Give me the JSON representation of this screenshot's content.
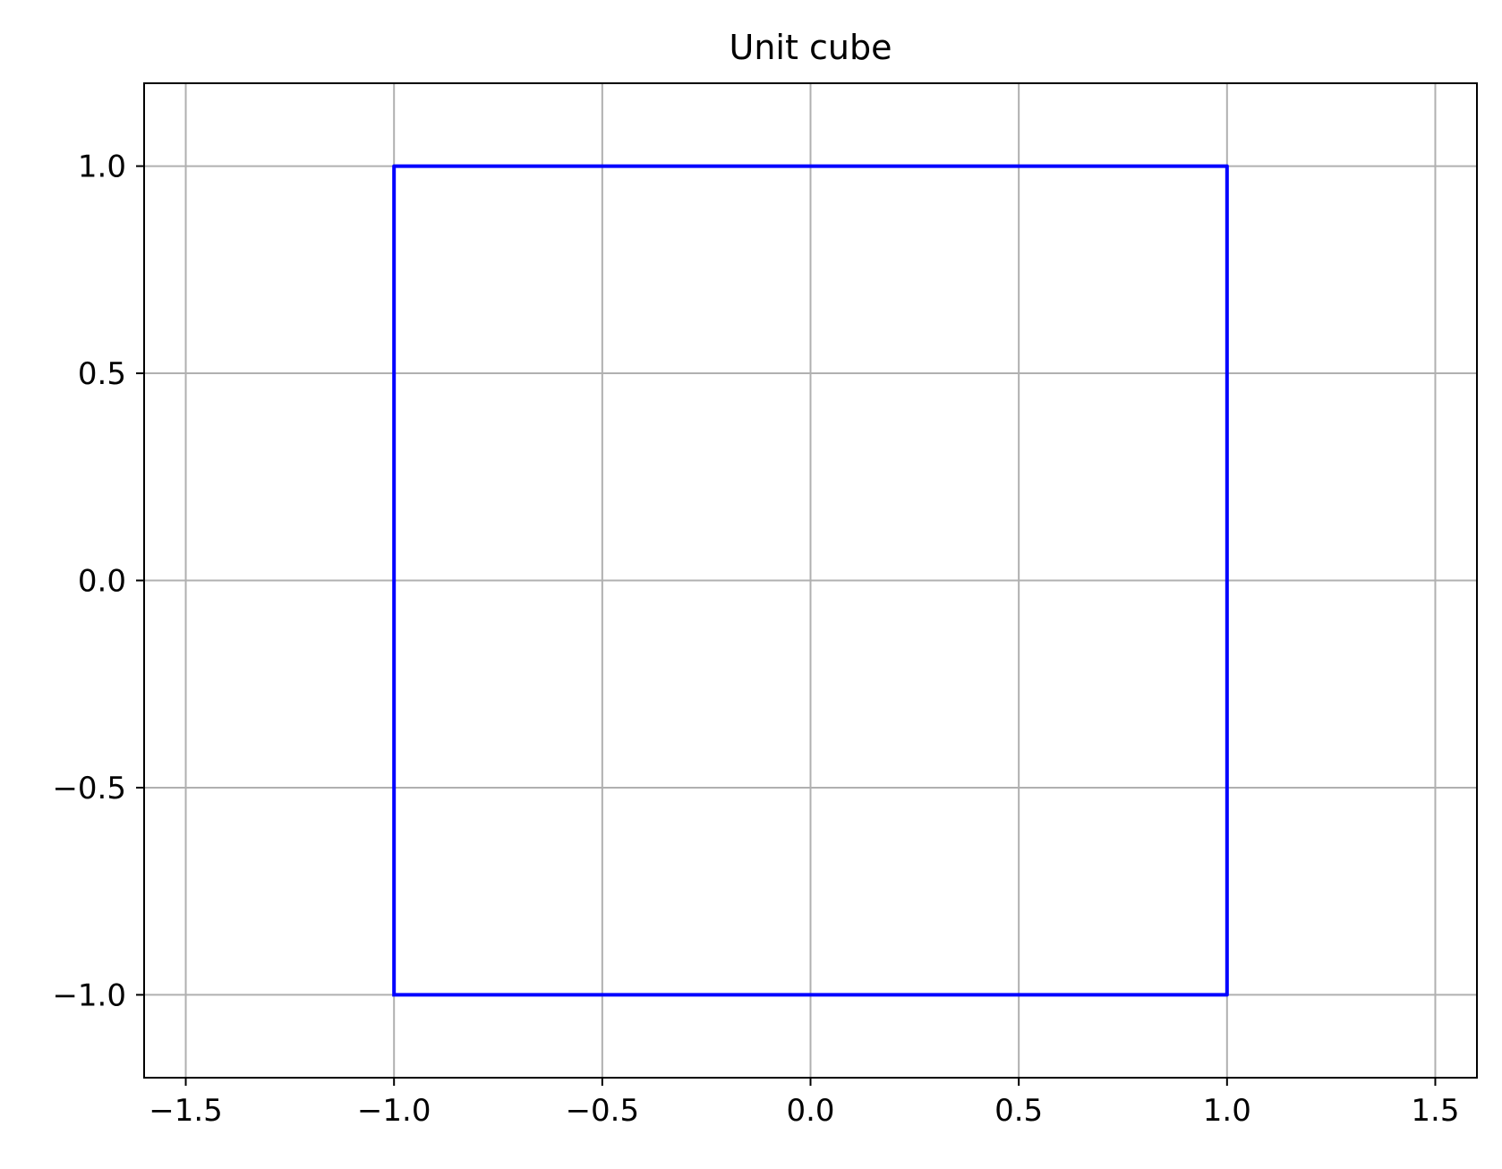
{
  "chart_data": {
    "type": "line",
    "title": "Unit cube",
    "xlabel": "",
    "ylabel": "",
    "xlim": [
      -1.6,
      1.6
    ],
    "ylim": [
      -1.2,
      1.2
    ],
    "grid": true,
    "x_ticks": [
      -1.5,
      -1.0,
      -0.5,
      0.0,
      0.5,
      1.0,
      1.5
    ],
    "x_tick_labels": [
      "−1.5",
      "−1.0",
      "−0.5",
      "0.0",
      "0.5",
      "1.0",
      "1.5"
    ],
    "y_ticks": [
      -1.0,
      -0.5,
      0.0,
      0.5,
      1.0
    ],
    "y_tick_labels": [
      "−1.0",
      "−0.5",
      "0.0",
      "0.5",
      "1.0"
    ],
    "series": [
      {
        "color": "#0000ff",
        "x": [
          -1,
          1,
          1,
          -1,
          -1
        ],
        "y": [
          -1,
          -1,
          1,
          1,
          -1
        ]
      }
    ],
    "colors": {
      "grid": "#b0b0b0",
      "axes": "#000000",
      "background": "#ffffff"
    }
  }
}
